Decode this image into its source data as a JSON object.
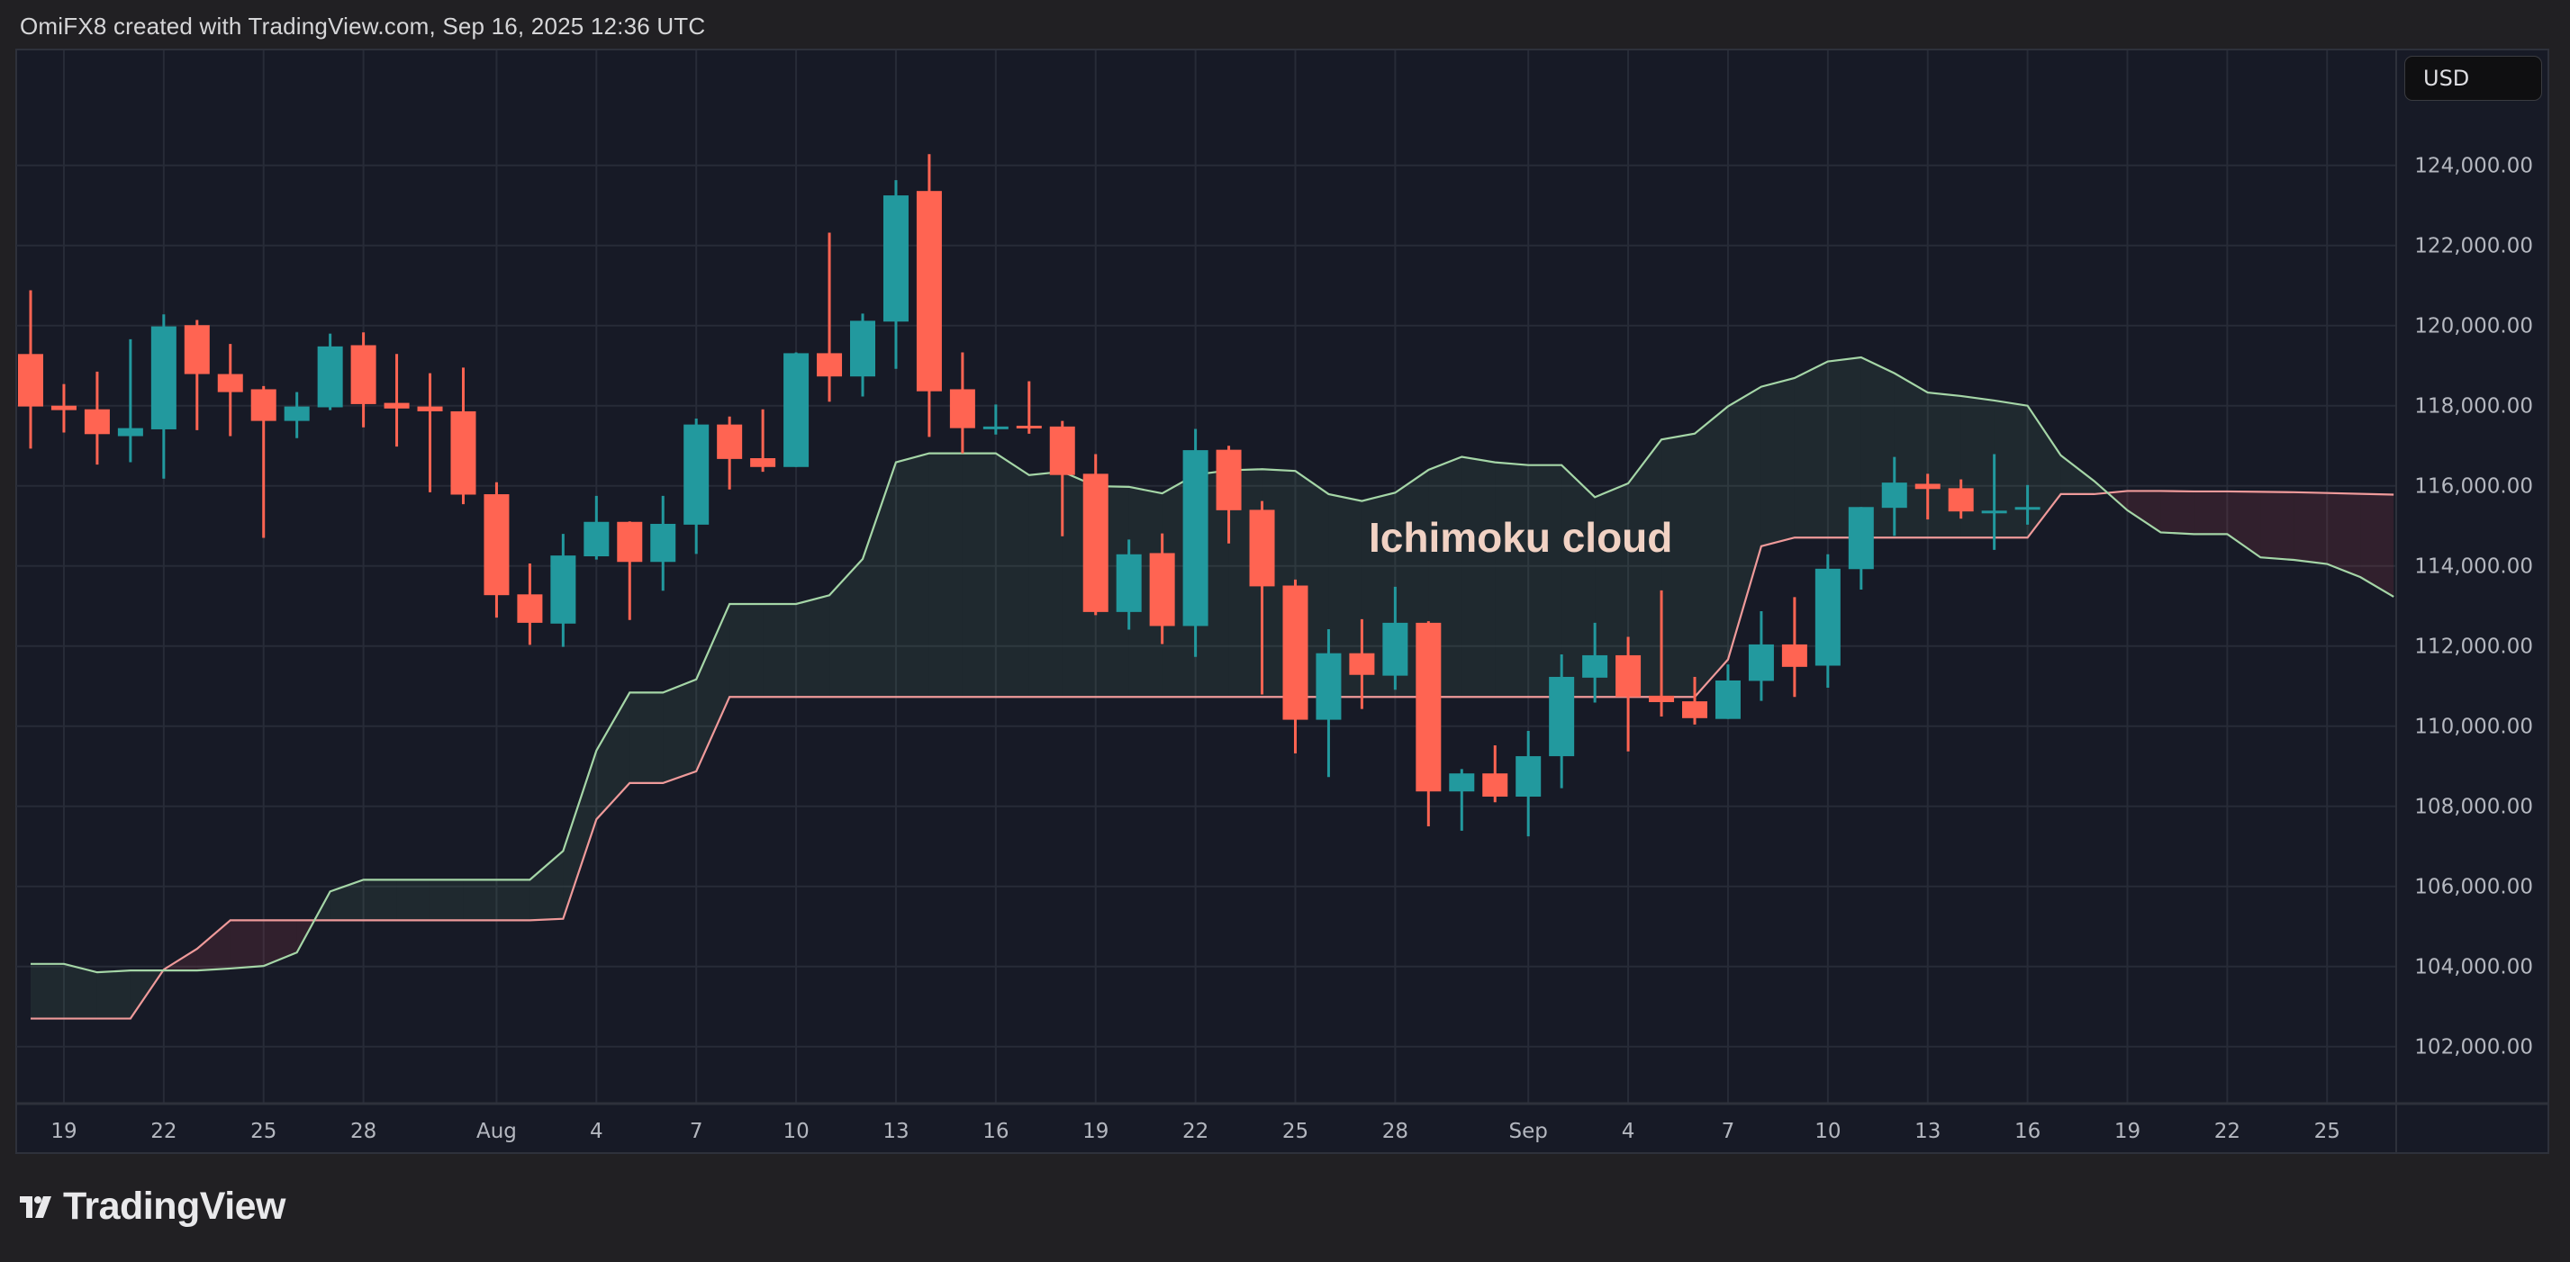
{
  "header": {
    "attribution": "OmiFX8 created with TradingView.com, Sep 16, 2025 12:36 UTC"
  },
  "price_scale": {
    "currency_button": "USD"
  },
  "annotation": {
    "text": "Ichimoku cloud"
  },
  "footer": {
    "logo_text": "TradingView"
  },
  "colors": {
    "up": "#22999e",
    "down": "#ff6452",
    "span_a": "#a5d6a7",
    "span_b": "#ef9a9a",
    "cloud_bull": "rgba(120,200,140,0.09)",
    "cloud_bear": "rgba(239,84,100,0.12)",
    "pane_bg": "#171a26",
    "grid": "#272b37"
  },
  "chart_data": {
    "type": "candlestick",
    "title": "",
    "ylim": [
      101000,
      125500
    ],
    "y_ticks": [
      "102,000.00",
      "104,000.00",
      "106,000.00",
      "108,000.00",
      "110,000.00",
      "112,000.00",
      "114,000.00",
      "116,000.00",
      "118,000.00",
      "120,000.00",
      "122,000.00",
      "124,000.00"
    ],
    "y_tick_values": [
      102000,
      104000,
      106000,
      108000,
      110000,
      112000,
      114000,
      116000,
      118000,
      120000,
      122000,
      124000
    ],
    "x_range": [
      "2025-07-17",
      "2025-09-27"
    ],
    "x_ticks": [
      {
        "label": "19",
        "date": "2025-07-19"
      },
      {
        "label": "22",
        "date": "2025-07-22"
      },
      {
        "label": "25",
        "date": "2025-07-25"
      },
      {
        "label": "28",
        "date": "2025-07-28"
      },
      {
        "label": "Aug",
        "date": "2025-08-01"
      },
      {
        "label": "4",
        "date": "2025-08-04"
      },
      {
        "label": "7",
        "date": "2025-08-07"
      },
      {
        "label": "10",
        "date": "2025-08-10"
      },
      {
        "label": "13",
        "date": "2025-08-13"
      },
      {
        "label": "16",
        "date": "2025-08-16"
      },
      {
        "label": "19",
        "date": "2025-08-19"
      },
      {
        "label": "22",
        "date": "2025-08-22"
      },
      {
        "label": "25",
        "date": "2025-08-25"
      },
      {
        "label": "28",
        "date": "2025-08-28"
      },
      {
        "label": "Sep",
        "date": "2025-09-01"
      },
      {
        "label": "4",
        "date": "2025-09-04"
      },
      {
        "label": "7",
        "date": "2025-09-07"
      },
      {
        "label": "10",
        "date": "2025-09-10"
      },
      {
        "label": "13",
        "date": "2025-09-13"
      },
      {
        "label": "16",
        "date": "2025-09-16"
      },
      {
        "label": "19",
        "date": "2025-09-19"
      },
      {
        "label": "22",
        "date": "2025-09-22"
      },
      {
        "label": "25",
        "date": "2025-09-25"
      }
    ],
    "candles_columns": [
      "date",
      "open",
      "high",
      "low",
      "close"
    ],
    "candles": [
      [
        "2025-07-18",
        119290,
        120880,
        116930,
        117980
      ],
      [
        "2025-07-19",
        118000,
        118540,
        117330,
        117890
      ],
      [
        "2025-07-20",
        117910,
        118850,
        116530,
        117290
      ],
      [
        "2025-07-21",
        117240,
        119660,
        116590,
        117440
      ],
      [
        "2025-07-22",
        117410,
        120280,
        116180,
        119980
      ],
      [
        "2025-07-23",
        120010,
        120140,
        117390,
        118790
      ],
      [
        "2025-07-24",
        118790,
        119540,
        117240,
        118340
      ],
      [
        "2025-07-25",
        118410,
        118490,
        114700,
        117620
      ],
      [
        "2025-07-26",
        117620,
        118340,
        117190,
        117980
      ],
      [
        "2025-07-27",
        117960,
        119800,
        117890,
        119480
      ],
      [
        "2025-07-28",
        119510,
        119830,
        117460,
        118040
      ],
      [
        "2025-07-29",
        118070,
        119290,
        116980,
        117930
      ],
      [
        "2025-07-30",
        117980,
        118810,
        115840,
        117860
      ],
      [
        "2025-07-31",
        117860,
        118950,
        115540,
        115780
      ],
      [
        "2025-08-01",
        115790,
        116090,
        112710,
        113270
      ],
      [
        "2025-08-02",
        113290,
        114060,
        112030,
        112580
      ],
      [
        "2025-08-03",
        112560,
        114800,
        111980,
        114260
      ],
      [
        "2025-08-04",
        114240,
        115750,
        114160,
        115100
      ],
      [
        "2025-08-05",
        115100,
        115110,
        112650,
        114100
      ],
      [
        "2025-08-06",
        114100,
        115750,
        113380,
        115050
      ],
      [
        "2025-08-07",
        115030,
        117680,
        114300,
        117530
      ],
      [
        "2025-08-08",
        117530,
        117730,
        115910,
        116670
      ],
      [
        "2025-08-09",
        116690,
        117910,
        116350,
        116470
      ],
      [
        "2025-08-10",
        116470,
        119330,
        116470,
        119310
      ],
      [
        "2025-08-11",
        119310,
        122320,
        118100,
        118730
      ],
      [
        "2025-08-12",
        118730,
        120300,
        118230,
        120120
      ],
      [
        "2025-08-13",
        120100,
        123630,
        118920,
        123250
      ],
      [
        "2025-08-14",
        123360,
        124280,
        117220,
        118360
      ],
      [
        "2025-08-15",
        118410,
        119330,
        116810,
        117440
      ],
      [
        "2025-08-16",
        117440,
        118030,
        117280,
        117480
      ],
      [
        "2025-08-17",
        117500,
        118610,
        117300,
        117460
      ],
      [
        "2025-08-18",
        117480,
        117620,
        114740,
        116270
      ],
      [
        "2025-08-19",
        116300,
        116790,
        112770,
        112850
      ],
      [
        "2025-08-20",
        112850,
        114660,
        112410,
        114290
      ],
      [
        "2025-08-21",
        114320,
        114810,
        112050,
        112500
      ],
      [
        "2025-08-22",
        112500,
        117420,
        111730,
        116890
      ],
      [
        "2025-08-23",
        116900,
        117000,
        114560,
        115390
      ],
      [
        "2025-08-24",
        115400,
        115620,
        110790,
        113490
      ],
      [
        "2025-08-25",
        113510,
        113660,
        109320,
        110160
      ],
      [
        "2025-08-26",
        110160,
        112420,
        108730,
        111820
      ],
      [
        "2025-08-27",
        111820,
        112670,
        110430,
        111280
      ],
      [
        "2025-08-28",
        111260,
        113480,
        110910,
        112580
      ],
      [
        "2025-08-29",
        112580,
        112620,
        107500,
        108370
      ],
      [
        "2025-08-30",
        108370,
        108930,
        107390,
        108820
      ],
      [
        "2025-08-31",
        108820,
        109520,
        108100,
        108240
      ],
      [
        "2025-09-01",
        108240,
        109880,
        107250,
        109250
      ],
      [
        "2025-09-02",
        109250,
        111790,
        108450,
        111230
      ],
      [
        "2025-09-03",
        111210,
        112580,
        110590,
        111770
      ],
      [
        "2025-09-04",
        111770,
        112230,
        109370,
        110730
      ],
      [
        "2025-09-05",
        110760,
        113390,
        110240,
        110600
      ],
      [
        "2025-09-06",
        110620,
        111230,
        110040,
        110200
      ],
      [
        "2025-09-07",
        110180,
        111540,
        110180,
        111140
      ],
      [
        "2025-09-08",
        111130,
        112870,
        110630,
        112040
      ],
      [
        "2025-09-09",
        112040,
        113220,
        110730,
        111480
      ],
      [
        "2025-09-10",
        111510,
        114290,
        110960,
        113930
      ],
      [
        "2025-09-11",
        113920,
        115470,
        113410,
        115470
      ],
      [
        "2025-09-12",
        115450,
        116720,
        114750,
        116080
      ],
      [
        "2025-09-13",
        116050,
        116300,
        115160,
        115920
      ],
      [
        "2025-09-14",
        115940,
        116160,
        115180,
        115360
      ],
      [
        "2025-09-15",
        115350,
        116790,
        114400,
        115380
      ],
      [
        "2025-09-16",
        115440,
        116020,
        115030,
        115470
      ]
    ],
    "cloud_start_date": "2025-07-18",
    "span_a": [
      104065,
      104065,
      103855,
      103900,
      103900,
      103900,
      103950,
      104013,
      104350,
      105873,
      106165,
      106165,
      106165,
      106165,
      106165,
      106165,
      106885,
      109390,
      110838,
      110838,
      111168,
      113050,
      113050,
      113050,
      113268,
      114173,
      116587,
      116811,
      116811,
      116811,
      116268,
      116354,
      115992,
      115974,
      115811,
      116276,
      116388,
      116414,
      116371,
      115793,
      115621,
      115828,
      116397,
      116724,
      116586,
      116517,
      116517,
      115716,
      116061,
      117155,
      117302,
      117983,
      118474,
      118690,
      119104,
      119207,
      118810,
      118328,
      118242,
      118130,
      118000,
      116759,
      116121,
      115388,
      114837,
      114794,
      114794,
      114213,
      114150,
      114049,
      113720,
      113230
    ],
    "span_b": [
      102700,
      102700,
      102700,
      102700,
      103923,
      104440,
      105153,
      105153,
      105153,
      105153,
      105153,
      105153,
      105153,
      105153,
      105153,
      105153,
      105190,
      107673,
      108580,
      108580,
      108873,
      110730,
      110730,
      110730,
      110730,
      110730,
      110730,
      110730,
      110730,
      110730,
      110730,
      110730,
      110730,
      110730,
      110730,
      110730,
      110730,
      110730,
      110730,
      110730,
      110730,
      110730,
      110730,
      110730,
      110730,
      110730,
      110730,
      110730,
      110730,
      110730,
      110730,
      111664,
      114492,
      114707,
      114707,
      114707,
      114707,
      114707,
      114707,
      114707,
      114707,
      115793,
      115793,
      115871,
      115871,
      115860,
      115860,
      115850,
      115840,
      115820,
      115800,
      115780
    ]
  }
}
